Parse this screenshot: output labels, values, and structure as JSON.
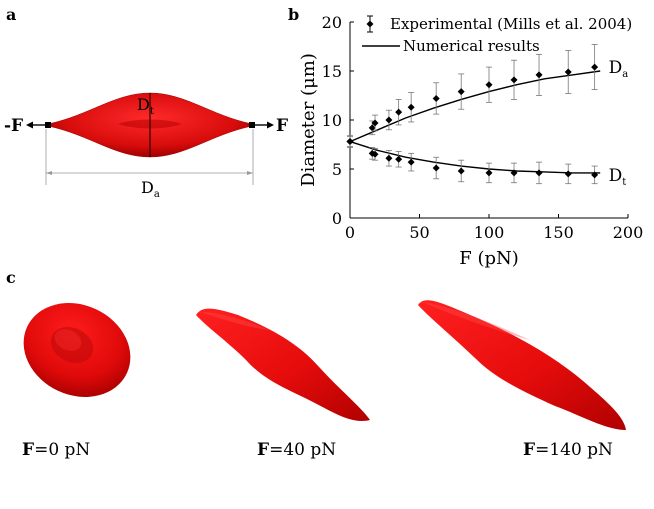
{
  "panels": {
    "a": {
      "label": "a",
      "force_left": "-F",
      "force_right": "F",
      "axial_diameter": "D",
      "axial_sub": "a",
      "transverse_diameter": "D",
      "transverse_sub": "t",
      "cell_color": "#e30e0e"
    },
    "b": {
      "label": "b"
    },
    "c": {
      "label": "c",
      "captions": [
        {
          "bold": "F",
          "text": "=0 pN"
        },
        {
          "bold": "F",
          "text": "=40 pN"
        },
        {
          "bold": "F",
          "text": "=140 pN"
        }
      ]
    }
  },
  "chart_data": {
    "type": "scatter",
    "xlabel": "F (pN)",
    "ylabel": "Diameter (μm)",
    "xlim": [
      0,
      200
    ],
    "ylim": [
      0,
      20
    ],
    "xticks": [
      0,
      50,
      100,
      150,
      200
    ],
    "yticks": [
      0,
      5,
      10,
      15,
      20
    ],
    "legend": {
      "placement": "top",
      "experimental": "Experimental (Mills et al. 2004)",
      "numerical": "Numerical results"
    },
    "series": [
      {
        "name": "Experimental Da",
        "label_main": "D",
        "label_sub": "a",
        "x": [
          0,
          16,
          18,
          28,
          35,
          44,
          62,
          80,
          100,
          118,
          136,
          157,
          176
        ],
        "y": [
          7.8,
          9.2,
          9.7,
          10.0,
          10.8,
          11.3,
          12.2,
          12.9,
          13.6,
          14.1,
          14.6,
          14.9,
          15.4
        ],
        "err": [
          0.6,
          0.7,
          0.8,
          1.0,
          1.3,
          1.5,
          1.6,
          1.8,
          1.8,
          2.0,
          2.1,
          2.2,
          2.3
        ]
      },
      {
        "name": "Experimental Dt",
        "label_main": "D",
        "label_sub": "t",
        "x": [
          0,
          16,
          18,
          28,
          35,
          44,
          62,
          80,
          100,
          118,
          136,
          157,
          176
        ],
        "y": [
          7.8,
          6.6,
          6.5,
          6.1,
          6.0,
          5.7,
          5.1,
          4.8,
          4.6,
          4.6,
          4.6,
          4.5,
          4.4
        ],
        "err": [
          0.5,
          0.6,
          0.6,
          0.8,
          0.8,
          0.9,
          1.1,
          1.1,
          1.0,
          1.0,
          1.1,
          1.0,
          0.9
        ]
      },
      {
        "name": "Numerical Da",
        "x": [
          0,
          20,
          40,
          60,
          80,
          100,
          120,
          140,
          160,
          180
        ],
        "y": [
          7.8,
          9.0,
          10.2,
          11.2,
          12.1,
          12.9,
          13.6,
          14.2,
          14.6,
          15.0
        ]
      },
      {
        "name": "Numerical Dt",
        "x": [
          0,
          20,
          40,
          60,
          80,
          100,
          120,
          140,
          160,
          180
        ],
        "y": [
          7.8,
          6.9,
          6.2,
          5.7,
          5.3,
          5.0,
          4.8,
          4.7,
          4.6,
          4.6
        ]
      }
    ]
  }
}
